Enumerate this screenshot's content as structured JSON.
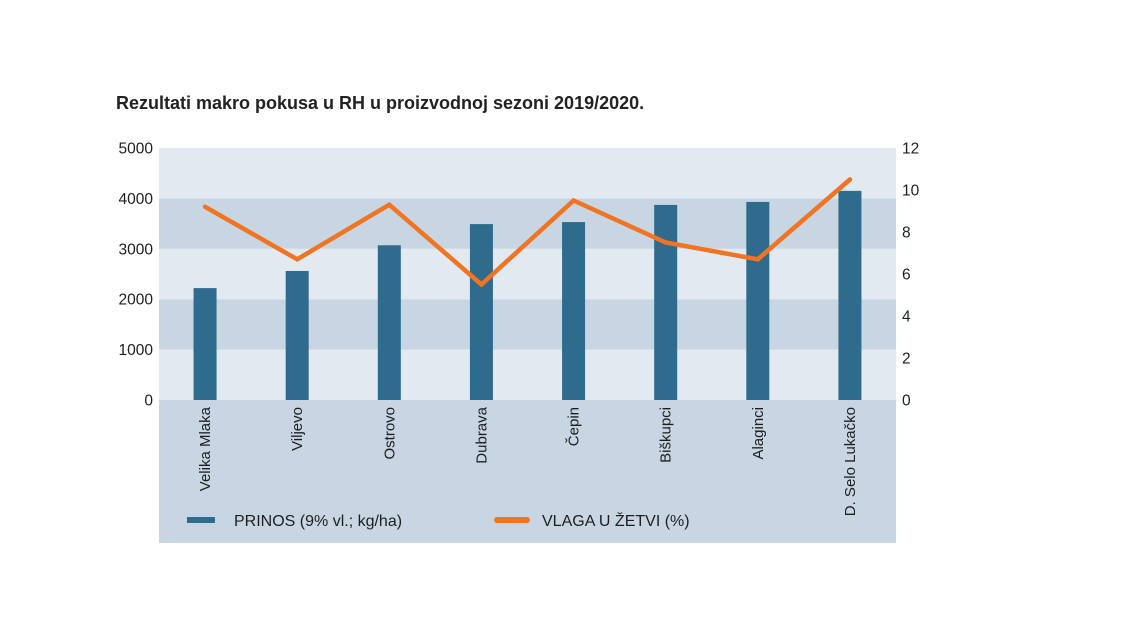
{
  "chart_data": {
    "type": "bar",
    "title": "Rezultati makro pokusa u RH u proizvodnoj sezoni 2019/2020.",
    "categories": [
      "Velika Mlaka",
      "Viljevo",
      "Ostrovo",
      "Dubrava",
      "Čepin",
      "Biškupci",
      "Alaginci",
      "D. Selo Lukačko"
    ],
    "series": [
      {
        "name": "PRINOS (9% vl.; kg/ha)",
        "kind": "bar",
        "axis": "left",
        "color": "#2e6b8c",
        "values": [
          2220,
          2560,
          3070,
          3490,
          3530,
          3870,
          3930,
          4150
        ]
      },
      {
        "name": "VLAGA U ŽETVI (%)",
        "kind": "line",
        "axis": "right",
        "color": "#f07421",
        "values": [
          9.2,
          6.7,
          9.3,
          5.5,
          9.5,
          7.5,
          6.7,
          10.5
        ]
      }
    ],
    "y_left": {
      "min": 0,
      "max": 5000,
      "ticks": [
        0,
        1000,
        2000,
        3000,
        4000,
        5000
      ]
    },
    "y_right": {
      "min": 0,
      "max": 12,
      "ticks": [
        0,
        2,
        4,
        6,
        8,
        10,
        12
      ]
    },
    "legend": "bottom",
    "bands": {
      "light": "#e3e9f0",
      "dark": "#c7d6e2"
    }
  }
}
